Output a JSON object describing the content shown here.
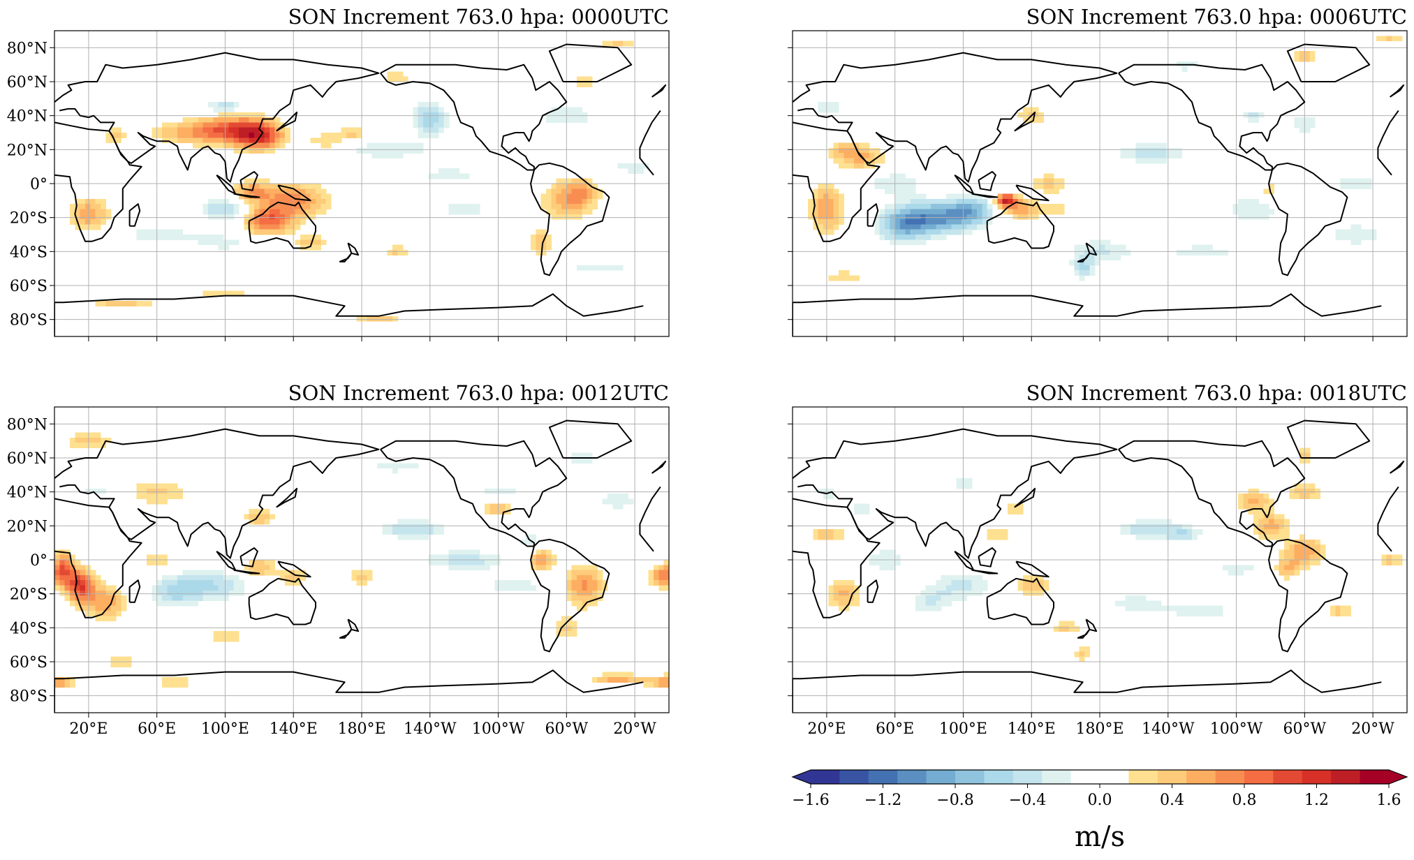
{
  "panels": [
    {
      "title": "SON Increment 763.0 hpa: 0000UTC",
      "show_y_labels": true,
      "show_x_labels": false
    },
    {
      "title": "SON Increment 763.0 hpa: 0006UTC",
      "show_y_labels": false,
      "show_x_labels": false
    },
    {
      "title": "SON Increment 763.0 hpa: 0012UTC",
      "show_y_labels": true,
      "show_x_labels": true
    },
    {
      "title": "SON Increment 763.0 hpa: 0018UTC",
      "show_y_labels": false,
      "show_x_labels": true
    }
  ],
  "map": {
    "projection": "PlateCarree",
    "central_longitude": 180,
    "lon_range": [
      0,
      360
    ],
    "lat_range": [
      -90,
      90
    ],
    "gridlines": true,
    "x_tick_labels": [
      "20°E",
      "60°E",
      "100°E",
      "140°E",
      "180°E",
      "140°W",
      "100°W",
      "60°W",
      "20°W"
    ],
    "x_tick_lons": [
      20,
      60,
      100,
      140,
      180,
      220,
      260,
      300,
      340
    ],
    "y_tick_labels": [
      "80°N",
      "60°N",
      "40°N",
      "20°N",
      "0°",
      "20°S",
      "40°S",
      "60°S",
      "80°S"
    ],
    "y_tick_lats": [
      80,
      60,
      40,
      20,
      0,
      -20,
      -40,
      -60,
      -80
    ]
  },
  "colorbar": {
    "unit_label": "m/s",
    "tick_labels": [
      "−1.6",
      "−1.2",
      "−0.8",
      "−0.4",
      "0.0",
      "0.4",
      "0.8",
      "1.2",
      "1.6"
    ],
    "tick_values": [
      -1.6,
      -1.2,
      -0.8,
      -0.4,
      0.0,
      0.4,
      0.8,
      1.2,
      1.6
    ],
    "range": [
      -1.6,
      1.6
    ],
    "extend": "both",
    "colors": [
      "#313695",
      "#3a54a4",
      "#4471b2",
      "#5b8fc2",
      "#74add1",
      "#90c3dd",
      "#abd9e9",
      "#c4e4ee",
      "#dff2f0",
      "#ffffff",
      "#ffffff",
      "#fee090",
      "#fdcb7a",
      "#fdae61",
      "#f88d52",
      "#f46d43",
      "#e34a33",
      "#d73027",
      "#be1e26",
      "#a50026"
    ]
  },
  "fields": [
    {
      "blobs": [
        [
          120,
          28,
          1.0,
          14,
          8
        ],
        [
          105,
          32,
          0.8,
          20,
          8
        ],
        [
          80,
          30,
          0.5,
          24,
          7
        ],
        [
          35,
          28,
          0.35,
          8,
          5
        ],
        [
          20,
          -18,
          0.6,
          12,
          10
        ],
        [
          125,
          -22,
          0.9,
          14,
          8
        ],
        [
          140,
          -10,
          0.7,
          20,
          10
        ],
        [
          115,
          -5,
          0.6,
          12,
          6
        ],
        [
          160,
          25,
          0.35,
          12,
          6
        ],
        [
          300,
          -10,
          0.55,
          14,
          12
        ],
        [
          310,
          -5,
          0.4,
          10,
          8
        ],
        [
          285,
          -35,
          0.4,
          6,
          10
        ],
        [
          200,
          -40,
          0.35,
          8,
          4
        ],
        [
          150,
          -35,
          0.4,
          10,
          5
        ],
        [
          100,
          45,
          -0.5,
          12,
          3
        ],
        [
          220,
          38,
          -0.6,
          10,
          10
        ],
        [
          100,
          -15,
          -0.45,
          16,
          8
        ],
        [
          195,
          20,
          -0.3,
          30,
          6
        ],
        [
          230,
          5,
          -0.25,
          25,
          6
        ],
        [
          240,
          -15,
          -0.25,
          20,
          8
        ],
        [
          60,
          -30,
          -0.25,
          30,
          6
        ],
        [
          100,
          -35,
          -0.25,
          20,
          5
        ],
        [
          300,
          40,
          -0.3,
          20,
          8
        ],
        [
          340,
          10,
          -0.25,
          20,
          6
        ],
        [
          320,
          -50,
          -0.25,
          30,
          5
        ],
        [
          40,
          -70,
          0.4,
          20,
          3
        ],
        [
          100,
          -65,
          0.3,
          20,
          3
        ],
        [
          190,
          -80,
          0.4,
          15,
          3
        ],
        [
          330,
          82,
          0.35,
          12,
          3
        ],
        [
          310,
          60,
          0.35,
          6,
          5
        ],
        [
          200,
          62,
          0.3,
          10,
          5
        ],
        [
          175,
          30,
          0.35,
          8,
          4
        ]
      ]
    },
    {
      "blobs": [
        [
          85,
          -20,
          -1.0,
          22,
          9
        ],
        [
          65,
          -25,
          -0.7,
          14,
          10
        ],
        [
          105,
          -15,
          -0.6,
          12,
          8
        ],
        [
          60,
          0,
          -0.3,
          20,
          8
        ],
        [
          125,
          -10,
          1.3,
          6,
          4
        ],
        [
          135,
          -15,
          0.6,
          10,
          6
        ],
        [
          20,
          -15,
          0.65,
          10,
          14
        ],
        [
          40,
          15,
          0.5,
          14,
          8
        ],
        [
          30,
          20,
          0.35,
          10,
          5
        ],
        [
          150,
          0,
          0.4,
          10,
          6
        ],
        [
          155,
          -15,
          0.3,
          8,
          6
        ],
        [
          280,
          -5,
          0.35,
          6,
          6
        ],
        [
          300,
          75,
          0.4,
          8,
          4
        ],
        [
          350,
          85,
          0.35,
          10,
          3
        ],
        [
          210,
          18,
          -0.4,
          24,
          6
        ],
        [
          270,
          -15,
          -0.3,
          20,
          10
        ],
        [
          240,
          -40,
          -0.25,
          30,
          6
        ],
        [
          180,
          -40,
          -0.35,
          20,
          8
        ],
        [
          170,
          -50,
          -0.5,
          6,
          6
        ],
        [
          330,
          -30,
          -0.25,
          30,
          10
        ],
        [
          300,
          35,
          -0.3,
          10,
          6
        ],
        [
          270,
          40,
          -0.35,
          8,
          4
        ],
        [
          20,
          45,
          -0.3,
          10,
          5
        ],
        [
          30,
          -55,
          0.3,
          15,
          4
        ],
        [
          140,
          40,
          0.35,
          10,
          6
        ],
        [
          330,
          0,
          -0.25,
          20,
          8
        ],
        [
          230,
          70,
          -0.3,
          10,
          4
        ]
      ]
    },
    {
      "blobs": [
        [
          15,
          -15,
          1.1,
          8,
          10
        ],
        [
          5,
          -5,
          0.9,
          6,
          10
        ],
        [
          30,
          -25,
          0.6,
          12,
          10
        ],
        [
          310,
          -15,
          0.7,
          12,
          12
        ],
        [
          285,
          0,
          0.6,
          8,
          8
        ],
        [
          355,
          -10,
          0.7,
          6,
          6
        ],
        [
          90,
          -15,
          -0.5,
          24,
          9
        ],
        [
          70,
          -20,
          -0.4,
          14,
          8
        ],
        [
          210,
          18,
          -0.45,
          20,
          6
        ],
        [
          240,
          0,
          -0.4,
          25,
          6
        ],
        [
          270,
          -15,
          -0.25,
          30,
          8
        ],
        [
          280,
          10,
          -0.35,
          8,
          6
        ],
        [
          120,
          -5,
          0.5,
          10,
          6
        ],
        [
          140,
          -10,
          0.4,
          8,
          6
        ],
        [
          60,
          40,
          0.35,
          20,
          8
        ],
        [
          120,
          25,
          0.4,
          10,
          6
        ],
        [
          20,
          70,
          0.4,
          15,
          5
        ],
        [
          260,
          30,
          0.45,
          10,
          5
        ],
        [
          310,
          60,
          -0.3,
          10,
          5
        ],
        [
          260,
          40,
          -0.3,
          15,
          5
        ],
        [
          330,
          35,
          -0.3,
          12,
          6
        ],
        [
          330,
          -70,
          0.6,
          15,
          3
        ],
        [
          360,
          -72,
          0.7,
          12,
          4
        ],
        [
          70,
          -72,
          0.35,
          15,
          3
        ],
        [
          40,
          -60,
          0.35,
          10,
          3
        ],
        [
          100,
          -45,
          0.3,
          15,
          4
        ],
        [
          200,
          55,
          -0.3,
          20,
          4
        ],
        [
          300,
          -40,
          0.35,
          8,
          8
        ],
        [
          25,
          40,
          -0.25,
          15,
          5
        ],
        [
          180,
          -10,
          0.35,
          10,
          5
        ],
        [
          60,
          0,
          0.3,
          10,
          5
        ]
      ]
    },
    {
      "blobs": [
        [
          280,
          20,
          0.55,
          10,
          8
        ],
        [
          300,
          5,
          0.6,
          12,
          8
        ],
        [
          290,
          -5,
          0.5,
          8,
          6
        ],
        [
          270,
          35,
          0.55,
          10,
          6
        ],
        [
          300,
          40,
          0.4,
          12,
          6
        ],
        [
          30,
          -20,
          0.5,
          10,
          10
        ],
        [
          20,
          15,
          0.4,
          12,
          5
        ],
        [
          140,
          -15,
          0.5,
          10,
          6
        ],
        [
          320,
          -30,
          0.35,
          8,
          6
        ],
        [
          210,
          18,
          -0.45,
          20,
          6
        ],
        [
          230,
          15,
          -0.35,
          10,
          5
        ],
        [
          100,
          -15,
          -0.35,
          20,
          9
        ],
        [
          80,
          -25,
          -0.3,
          14,
          8
        ],
        [
          55,
          0,
          -0.3,
          15,
          8
        ],
        [
          40,
          30,
          -0.25,
          10,
          6
        ],
        [
          20,
          40,
          -0.3,
          8,
          5
        ],
        [
          260,
          -5,
          -0.25,
          20,
          6
        ],
        [
          240,
          -30,
          -0.25,
          30,
          6
        ],
        [
          160,
          -40,
          0.35,
          10,
          4
        ],
        [
          350,
          0,
          0.35,
          8,
          6
        ],
        [
          300,
          62,
          0.35,
          6,
          6
        ],
        [
          130,
          30,
          0.35,
          8,
          5
        ],
        [
          170,
          -55,
          0.35,
          5,
          5
        ],
        [
          100,
          45,
          -0.25,
          15,
          4
        ],
        [
          120,
          15,
          0.3,
          10,
          5
        ],
        [
          200,
          -25,
          -0.25,
          20,
          6
        ]
      ]
    }
  ]
}
